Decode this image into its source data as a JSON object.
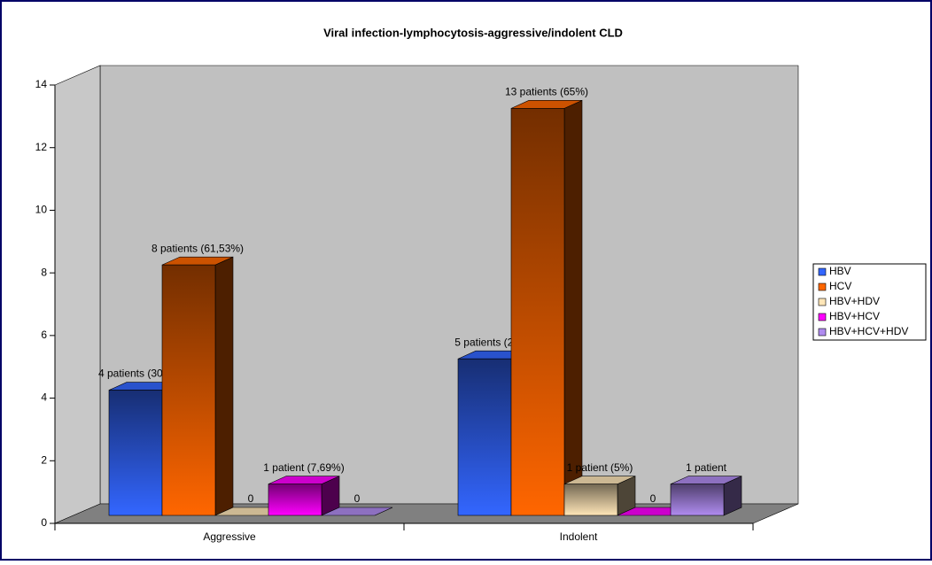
{
  "chart_data": {
    "type": "bar3d",
    "title": "Viral infection-lymphocytosis-aggressive/indolent CLD",
    "categories": [
      "Aggressive",
      "Indolent"
    ],
    "series": [
      {
        "name": "HBV",
        "color": "#3366ff",
        "values": [
          4,
          5
        ],
        "value_labels": [
          "4 patients (30,76%)",
          "5 patients (25%)"
        ]
      },
      {
        "name": "HCV",
        "color": "#ff6600",
        "values": [
          8,
          13
        ],
        "value_labels": [
          "8 patients (61,53%)",
          "13 patients (65%)"
        ]
      },
      {
        "name": "HBV+HDV",
        "color": "#ffe6b8",
        "values": [
          0,
          1
        ],
        "value_labels": [
          "0",
          "1 patient (5%)"
        ]
      },
      {
        "name": "HBV+HCV",
        "color": "#ff00ff",
        "values": [
          1,
          0
        ],
        "value_labels": [
          "1 patient (7,69%)",
          "0"
        ]
      },
      {
        "name": "HBV+HCV+HDV",
        "color": "#b08cf0",
        "values": [
          0,
          1
        ],
        "value_labels": [
          "0",
          "1 patient"
        ]
      }
    ],
    "ylim": [
      0,
      14
    ],
    "yticks": [
      0,
      2,
      4,
      6,
      8,
      10,
      12,
      14
    ],
    "grid": false,
    "legend": "right"
  }
}
